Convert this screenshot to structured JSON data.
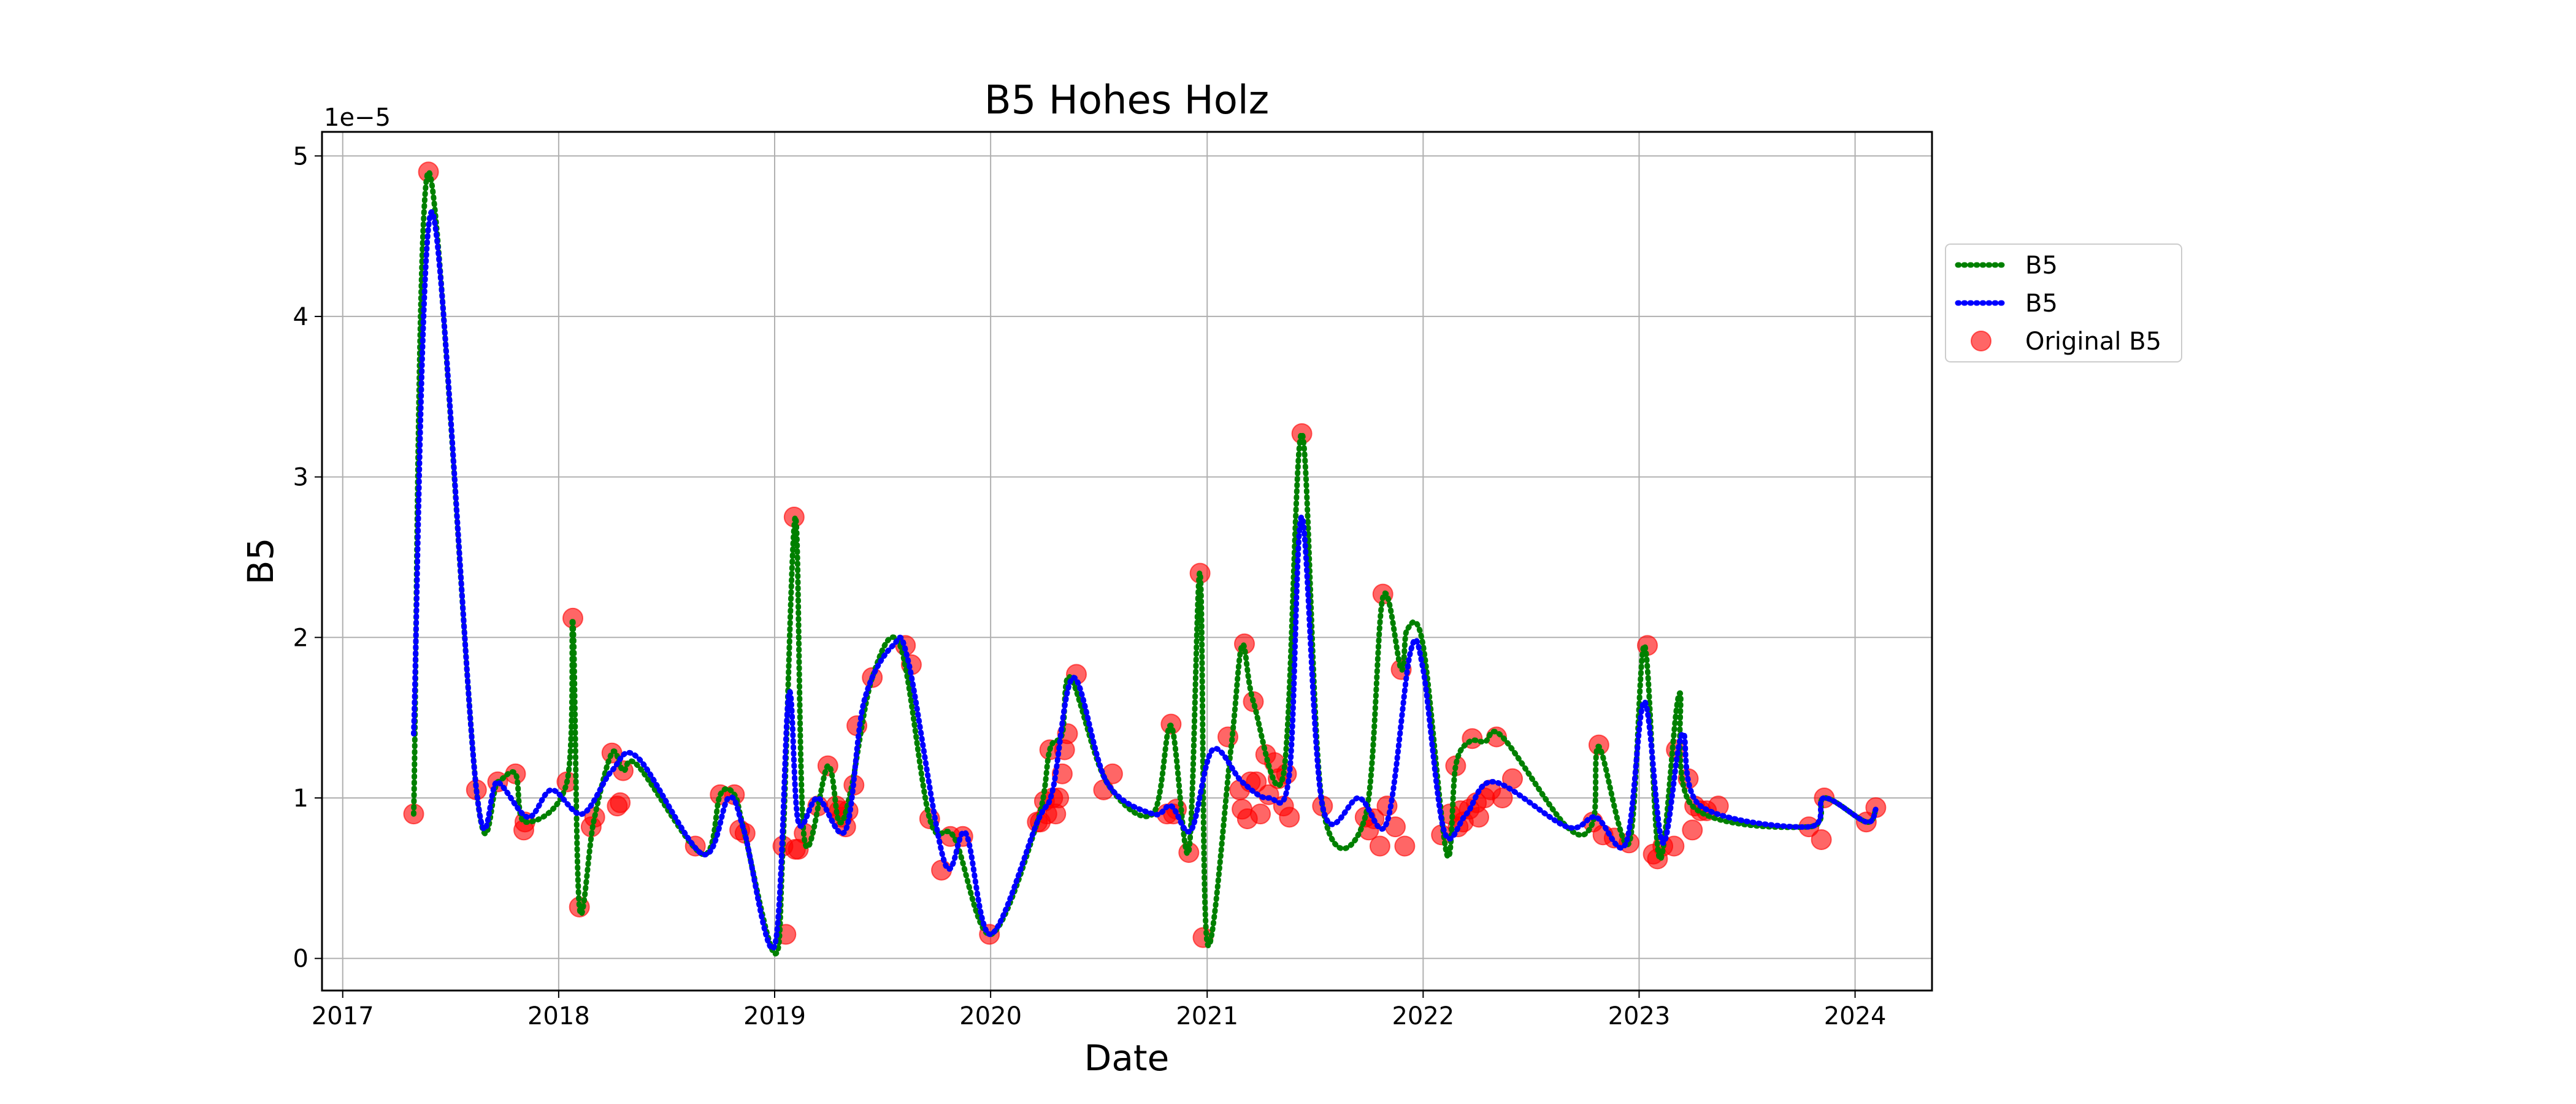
{
  "chart_data": {
    "type": "line",
    "title": "B5 Hohes Holz",
    "xlabel": "Date",
    "ylabel": "B5",
    "y_offset_label": "1e−5",
    "xlim": [
      "2016-11-27",
      "2024-05-10"
    ],
    "ylim": [
      -0.2,
      5.15
    ],
    "x_ticks": [
      {
        "date": "2017-01-01",
        "label": "2017"
      },
      {
        "date": "2018-01-01",
        "label": "2018"
      },
      {
        "date": "2019-01-01",
        "label": "2019"
      },
      {
        "date": "2020-01-01",
        "label": "2020"
      },
      {
        "date": "2021-01-01",
        "label": "2021"
      },
      {
        "date": "2022-01-01",
        "label": "2022"
      },
      {
        "date": "2023-01-01",
        "label": "2023"
      },
      {
        "date": "2024-01-01",
        "label": "2024"
      }
    ],
    "y_ticks": [
      {
        "value": 0,
        "label": "0"
      },
      {
        "value": 1,
        "label": "1"
      },
      {
        "value": 2,
        "label": "2"
      },
      {
        "value": 3,
        "label": "3"
      },
      {
        "value": 4,
        "label": "4"
      },
      {
        "value": 5,
        "label": "5"
      }
    ],
    "grid": true,
    "legend_position": "outside-right",
    "legend": [
      {
        "label": "B5",
        "style": "dotted-line",
        "color": "#008000"
      },
      {
        "label": "B5",
        "style": "dotted-line",
        "color": "#0000ff"
      },
      {
        "label": "Original B5",
        "style": "marker",
        "color": "#ff0000"
      }
    ],
    "series": [
      {
        "name": "B5",
        "color": "#008000",
        "style": "dotted",
        "points": [
          [
            "2017-05-01",
            0.9
          ],
          [
            "2017-05-26",
            4.9
          ],
          [
            "2017-08-15",
            1.05
          ],
          [
            "2017-09-20",
            1.1
          ],
          [
            "2017-10-20",
            1.15
          ],
          [
            "2017-11-05",
            0.85
          ],
          [
            "2018-01-15",
            1.1
          ],
          [
            "2018-01-25",
            2.1
          ],
          [
            "2018-02-05",
            0.32
          ],
          [
            "2018-03-01",
            0.85
          ],
          [
            "2018-04-01",
            1.28
          ],
          [
            "2018-04-20",
            1.17
          ],
          [
            "2018-05-15",
            1.2
          ],
          [
            "2018-09-01",
            0.65
          ],
          [
            "2018-10-01",
            1.02
          ],
          [
            "2018-10-25",
            1.02
          ],
          [
            "2018-11-10",
            0.8
          ],
          [
            "2019-01-01",
            0.03
          ],
          [
            "2019-01-15",
            0.7
          ],
          [
            "2019-02-05",
            2.75
          ],
          [
            "2019-02-20",
            0.75
          ],
          [
            "2019-04-01",
            1.2
          ],
          [
            "2019-04-20",
            0.85
          ],
          [
            "2019-05-10",
            1.05
          ],
          [
            "2019-06-15",
            1.75
          ],
          [
            "2019-08-01",
            1.95
          ],
          [
            "2019-09-20",
            0.87
          ],
          [
            "2019-11-01",
            0.75
          ],
          [
            "2020-01-01",
            0.15
          ],
          [
            "2020-03-20",
            0.85
          ],
          [
            "2020-04-10",
            1.3
          ],
          [
            "2020-05-01",
            1.4
          ],
          [
            "2020-05-15",
            1.75
          ],
          [
            "2020-07-15",
            1.1
          ],
          [
            "2020-10-01",
            0.9
          ],
          [
            "2020-11-01",
            1.45
          ],
          [
            "2020-12-01",
            0.67
          ],
          [
            "2020-12-20",
            2.4
          ],
          [
            "2021-01-01",
            0.1
          ],
          [
            "2021-02-10",
            1.3
          ],
          [
            "2021-03-01",
            1.95
          ],
          [
            "2021-03-20",
            1.6
          ],
          [
            "2021-05-10",
            1.15
          ],
          [
            "2021-06-10",
            3.27
          ],
          [
            "2021-07-15",
            0.95
          ],
          [
            "2021-09-25",
            0.88
          ],
          [
            "2021-10-25",
            2.25
          ],
          [
            "2021-11-25",
            1.8
          ],
          [
            "2021-12-05",
            2.05
          ],
          [
            "2022-01-01",
            1.95
          ],
          [
            "2022-02-10",
            0.65
          ],
          [
            "2022-02-25",
            1.2
          ],
          [
            "2022-03-20",
            1.35
          ],
          [
            "2022-04-15",
            1.35
          ],
          [
            "2022-05-15",
            1.38
          ],
          [
            "2022-09-01",
            0.82
          ],
          [
            "2022-10-15",
            0.85
          ],
          [
            "2022-10-25",
            1.32
          ],
          [
            "2022-12-15",
            0.72
          ],
          [
            "2023-01-10",
            1.95
          ],
          [
            "2023-02-05",
            0.62
          ],
          [
            "2023-03-10",
            1.65
          ],
          [
            "2023-04-01",
            0.95
          ],
          [
            "2023-10-15",
            0.82
          ],
          [
            "2023-11-10",
            1.0
          ],
          [
            "2024-01-20",
            0.85
          ],
          [
            "2024-02-05",
            0.93
          ]
        ]
      },
      {
        "name": "B5",
        "color": "#0000ff",
        "style": "dotted",
        "points": [
          [
            "2017-05-01",
            1.4
          ],
          [
            "2017-06-01",
            4.65
          ],
          [
            "2017-08-15",
            1.05
          ],
          [
            "2017-09-20",
            1.1
          ],
          [
            "2017-11-10",
            0.88
          ],
          [
            "2017-12-20",
            1.05
          ],
          [
            "2018-02-10",
            0.9
          ],
          [
            "2018-04-01",
            1.17
          ],
          [
            "2018-05-15",
            1.25
          ],
          [
            "2018-09-01",
            0.65
          ],
          [
            "2018-10-15",
            1.0
          ],
          [
            "2018-11-10",
            0.8
          ],
          [
            "2019-01-01",
            0.08
          ],
          [
            "2019-01-25",
            1.65
          ],
          [
            "2019-02-10",
            0.85
          ],
          [
            "2019-03-15",
            1.0
          ],
          [
            "2019-05-01",
            0.8
          ],
          [
            "2019-06-01",
            1.6
          ],
          [
            "2019-07-20",
            1.95
          ],
          [
            "2019-08-15",
            1.85
          ],
          [
            "2019-10-15",
            0.6
          ],
          [
            "2019-11-20",
            0.78
          ],
          [
            "2020-01-01",
            0.15
          ],
          [
            "2020-03-20",
            0.85
          ],
          [
            "2020-04-15",
            1.05
          ],
          [
            "2020-05-20",
            1.75
          ],
          [
            "2020-07-15",
            1.1
          ],
          [
            "2020-10-01",
            0.9
          ],
          [
            "2020-11-01",
            0.95
          ],
          [
            "2020-12-05",
            0.8
          ],
          [
            "2021-01-10",
            1.3
          ],
          [
            "2021-03-01",
            1.1
          ],
          [
            "2021-04-15",
            1.0
          ],
          [
            "2021-05-20",
            1.15
          ],
          [
            "2021-06-10",
            2.75
          ],
          [
            "2021-07-15",
            0.95
          ],
          [
            "2021-09-15",
            1.0
          ],
          [
            "2021-11-01",
            0.85
          ],
          [
            "2021-12-10",
            1.9
          ],
          [
            "2022-01-01",
            1.8
          ],
          [
            "2022-02-05",
            0.8
          ],
          [
            "2022-03-15",
            0.9
          ],
          [
            "2022-05-01",
            1.1
          ],
          [
            "2022-09-01",
            0.82
          ],
          [
            "2022-10-20",
            0.88
          ],
          [
            "2022-12-10",
            0.72
          ],
          [
            "2023-01-10",
            1.6
          ],
          [
            "2023-02-10",
            0.72
          ],
          [
            "2023-03-15",
            1.4
          ],
          [
            "2023-04-15",
            0.95
          ],
          [
            "2023-10-15",
            0.82
          ],
          [
            "2023-11-10",
            1.0
          ],
          [
            "2024-01-20",
            0.85
          ],
          [
            "2024-02-05",
            0.93
          ]
        ]
      },
      {
        "name": "Original B5",
        "color": "#ff0000",
        "style": "marker",
        "points": [
          [
            "2017-05-01",
            0.9
          ],
          [
            "2017-05-26",
            4.9
          ],
          [
            "2017-08-15",
            1.05
          ],
          [
            "2017-09-20",
            1.1
          ],
          [
            "2017-10-20",
            1.15
          ],
          [
            "2017-11-03",
            0.8
          ],
          [
            "2017-11-05",
            0.85
          ],
          [
            "2018-01-15",
            1.1
          ],
          [
            "2018-01-25",
            2.12
          ],
          [
            "2018-02-05",
            0.32
          ],
          [
            "2018-02-25",
            0.82
          ],
          [
            "2018-03-03",
            0.88
          ],
          [
            "2018-04-01",
            1.28
          ],
          [
            "2018-04-10",
            0.95
          ],
          [
            "2018-04-15",
            0.97
          ],
          [
            "2018-04-20",
            1.17
          ],
          [
            "2018-08-20",
            0.7
          ],
          [
            "2018-10-01",
            1.02
          ],
          [
            "2018-10-25",
            1.02
          ],
          [
            "2018-11-03",
            0.8
          ],
          [
            "2018-11-12",
            0.78
          ],
          [
            "2019-01-15",
            0.7
          ],
          [
            "2019-01-20",
            0.15
          ],
          [
            "2019-02-03",
            2.75
          ],
          [
            "2019-02-05",
            0.68
          ],
          [
            "2019-02-10",
            0.68
          ],
          [
            "2019-02-20",
            0.78
          ],
          [
            "2019-03-15",
            0.95
          ],
          [
            "2019-04-01",
            1.2
          ],
          [
            "2019-04-15",
            0.95
          ],
          [
            "2019-04-20",
            0.92
          ],
          [
            "2019-04-25",
            0.88
          ],
          [
            "2019-05-01",
            0.82
          ],
          [
            "2019-05-05",
            0.92
          ],
          [
            "2019-05-15",
            1.08
          ],
          [
            "2019-05-20",
            1.45
          ],
          [
            "2019-06-15",
            1.75
          ],
          [
            "2019-08-10",
            1.95
          ],
          [
            "2019-08-20",
            1.83
          ],
          [
            "2019-09-20",
            0.87
          ],
          [
            "2019-10-10",
            0.55
          ],
          [
            "2019-10-25",
            0.76
          ],
          [
            "2019-11-15",
            0.76
          ],
          [
            "2019-12-30",
            0.15
          ],
          [
            "2020-03-20",
            0.85
          ],
          [
            "2020-03-25",
            0.85
          ],
          [
            "2020-04-01",
            0.98
          ],
          [
            "2020-04-05",
            0.9
          ],
          [
            "2020-04-10",
            1.3
          ],
          [
            "2020-04-15",
            1.0
          ],
          [
            "2020-04-20",
            0.9
          ],
          [
            "2020-04-25",
            1.0
          ],
          [
            "2020-05-01",
            1.15
          ],
          [
            "2020-05-05",
            1.3
          ],
          [
            "2020-05-10",
            1.4
          ],
          [
            "2020-05-25",
            1.77
          ],
          [
            "2020-07-10",
            1.05
          ],
          [
            "2020-07-25",
            1.15
          ],
          [
            "2020-10-25",
            0.9
          ],
          [
            "2020-11-01",
            1.46
          ],
          [
            "2020-11-05",
            0.9
          ],
          [
            "2020-11-10",
            0.93
          ],
          [
            "2020-12-01",
            0.66
          ],
          [
            "2020-12-20",
            2.4
          ],
          [
            "2020-12-25",
            0.13
          ],
          [
            "2021-02-05",
            1.38
          ],
          [
            "2021-02-25",
            1.05
          ],
          [
            "2021-03-01",
            0.93
          ],
          [
            "2021-03-05",
            1.96
          ],
          [
            "2021-03-10",
            0.87
          ],
          [
            "2021-03-15",
            1.1
          ],
          [
            "2021-03-20",
            1.6
          ],
          [
            "2021-03-25",
            1.1
          ],
          [
            "2021-04-01",
            0.9
          ],
          [
            "2021-04-10",
            1.27
          ],
          [
            "2021-04-15",
            1.02
          ],
          [
            "2021-04-25",
            1.22
          ],
          [
            "2021-05-01",
            1.12
          ],
          [
            "2021-05-10",
            0.95
          ],
          [
            "2021-05-15",
            1.15
          ],
          [
            "2021-05-20",
            0.88
          ],
          [
            "2021-06-10",
            3.27
          ],
          [
            "2021-07-15",
            0.95
          ],
          [
            "2021-09-25",
            0.88
          ],
          [
            "2021-10-01",
            0.8
          ],
          [
            "2021-10-10",
            0.87
          ],
          [
            "2021-10-20",
            0.7
          ],
          [
            "2021-10-25",
            2.27
          ],
          [
            "2021-11-01",
            0.95
          ],
          [
            "2021-11-15",
            0.82
          ],
          [
            "2021-11-25",
            1.8
          ],
          [
            "2021-12-01",
            0.7
          ],
          [
            "2022-02-01",
            0.77
          ],
          [
            "2022-02-15",
            0.9
          ],
          [
            "2022-02-25",
            1.2
          ],
          [
            "2022-03-01",
            0.82
          ],
          [
            "2022-03-05",
            0.92
          ],
          [
            "2022-03-10",
            0.85
          ],
          [
            "2022-03-20",
            0.93
          ],
          [
            "2022-03-25",
            1.37
          ],
          [
            "2022-04-01",
            0.97
          ],
          [
            "2022-04-05",
            0.88
          ],
          [
            "2022-04-15",
            1.0
          ],
          [
            "2022-04-25",
            1.05
          ],
          [
            "2022-05-05",
            1.38
          ],
          [
            "2022-05-15",
            1.0
          ],
          [
            "2022-06-01",
            1.12
          ],
          [
            "2022-10-15",
            0.85
          ],
          [
            "2022-10-25",
            1.33
          ],
          [
            "2022-11-01",
            0.77
          ],
          [
            "2022-11-20",
            0.75
          ],
          [
            "2022-12-15",
            0.72
          ],
          [
            "2023-01-15",
            1.95
          ],
          [
            "2023-01-25",
            0.65
          ],
          [
            "2023-02-01",
            0.62
          ],
          [
            "2023-02-10",
            0.7
          ],
          [
            "2023-03-01",
            0.7
          ],
          [
            "2023-03-05",
            1.3
          ],
          [
            "2023-03-25",
            1.12
          ],
          [
            "2023-04-01",
            0.8
          ],
          [
            "2023-04-05",
            0.95
          ],
          [
            "2023-04-15",
            0.92
          ],
          [
            "2023-04-25",
            0.92
          ],
          [
            "2023-05-15",
            0.95
          ],
          [
            "2023-10-15",
            0.82
          ],
          [
            "2023-11-05",
            0.74
          ],
          [
            "2023-11-10",
            1.0
          ],
          [
            "2024-01-20",
            0.85
          ],
          [
            "2024-02-05",
            0.94
          ]
        ]
      }
    ]
  }
}
